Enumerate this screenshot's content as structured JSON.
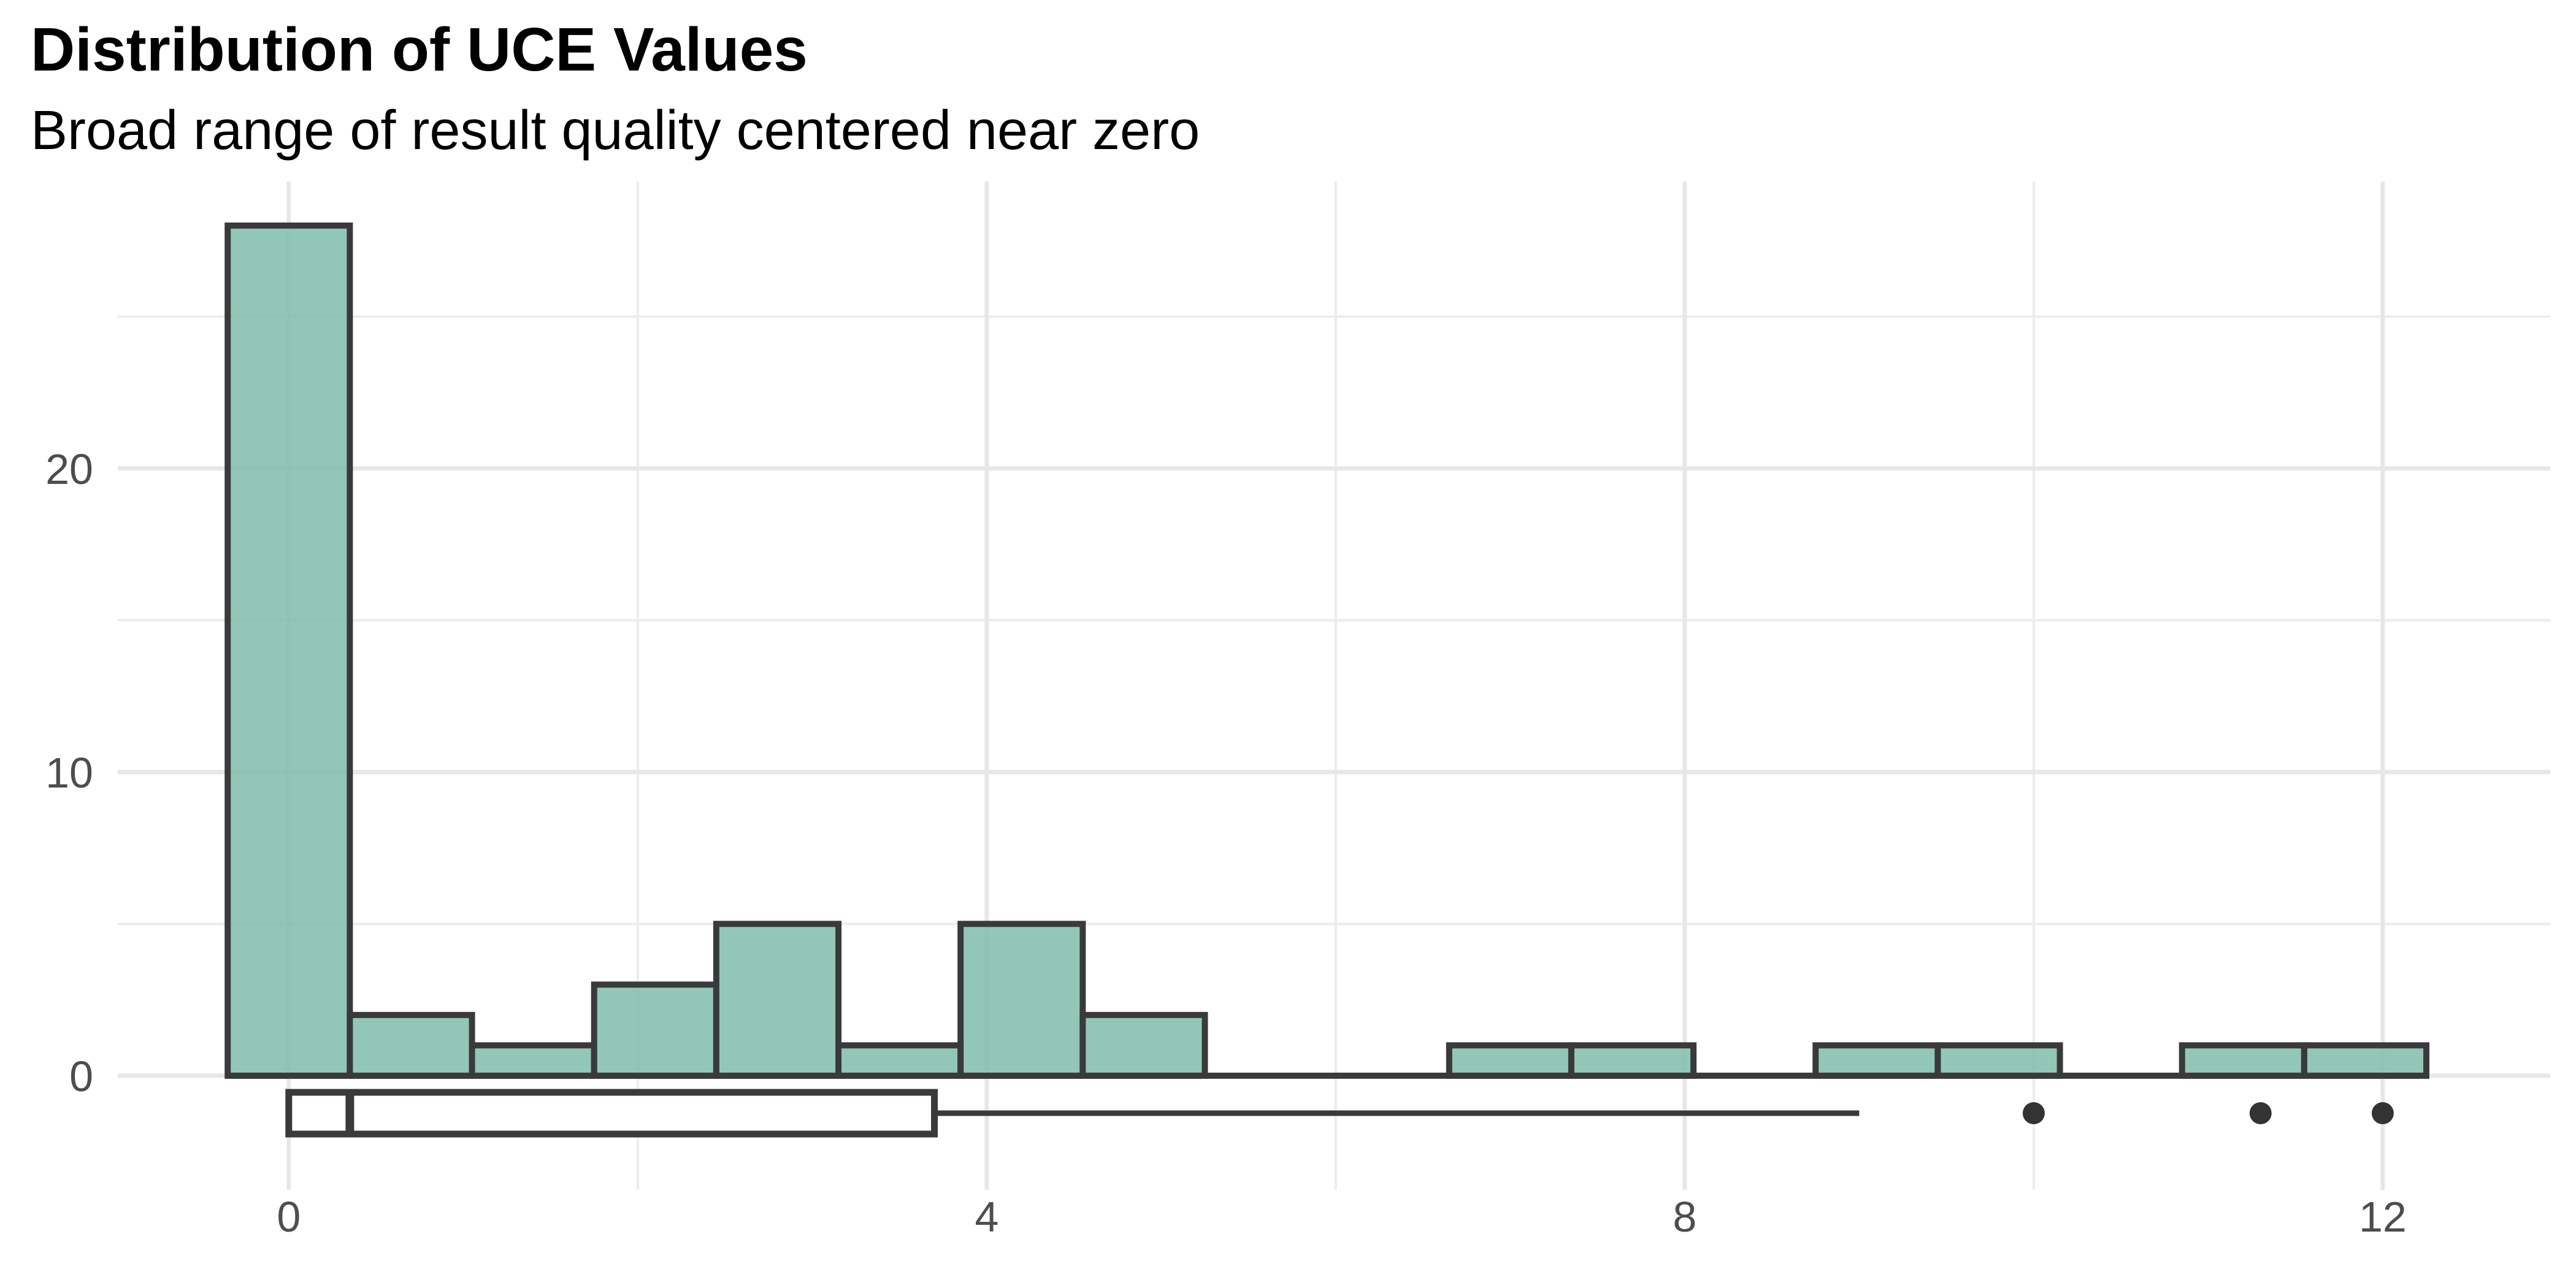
{
  "header": {
    "title": "Distribution of UCE Values",
    "subtitle": "Broad range of result quality centered near zero"
  },
  "chart_data": {
    "type": "histogram",
    "title": "Distribution of UCE Values",
    "subtitle": "Broad range of result quality centered near zero",
    "xlabel": "",
    "ylabel": "",
    "x_ticks_major": [
      0,
      4,
      8,
      12
    ],
    "x_ticks_minor": [
      2,
      6,
      10
    ],
    "y_ticks_major": [
      0,
      10,
      20
    ],
    "y_ticks_minor": [
      5,
      15,
      25
    ],
    "xlim": [
      -0.98,
      12.96
    ],
    "ylim": [
      -3.76,
      29.45
    ],
    "grid": true,
    "legend_position": "none",
    "bins": {
      "start": -0.35,
      "width": 0.7,
      "counts": [
        28,
        2,
        1,
        3,
        5,
        1,
        5,
        2,
        0,
        0,
        1,
        1,
        0,
        1,
        1,
        0,
        1,
        1
      ]
    },
    "boxplot": {
      "whisker_low": 0.0,
      "q1": 0.0,
      "median": 0.35,
      "q3": 3.7,
      "whisker_high": 9.0,
      "outliers": [
        10.0,
        11.3,
        12.0
      ]
    },
    "colors": {
      "bar_fill": "#7fbdab",
      "bar_fill_opacity": 0.85,
      "bar_stroke": "#3a3a3a",
      "grid_major": "#e7e7e7",
      "grid_minor": "#ececec",
      "axis_text": "#4d4d4d",
      "title_text": "#000000",
      "box_fill": "#ffffff",
      "outlier_fill": "#333333",
      "background": "#ffffff"
    }
  }
}
